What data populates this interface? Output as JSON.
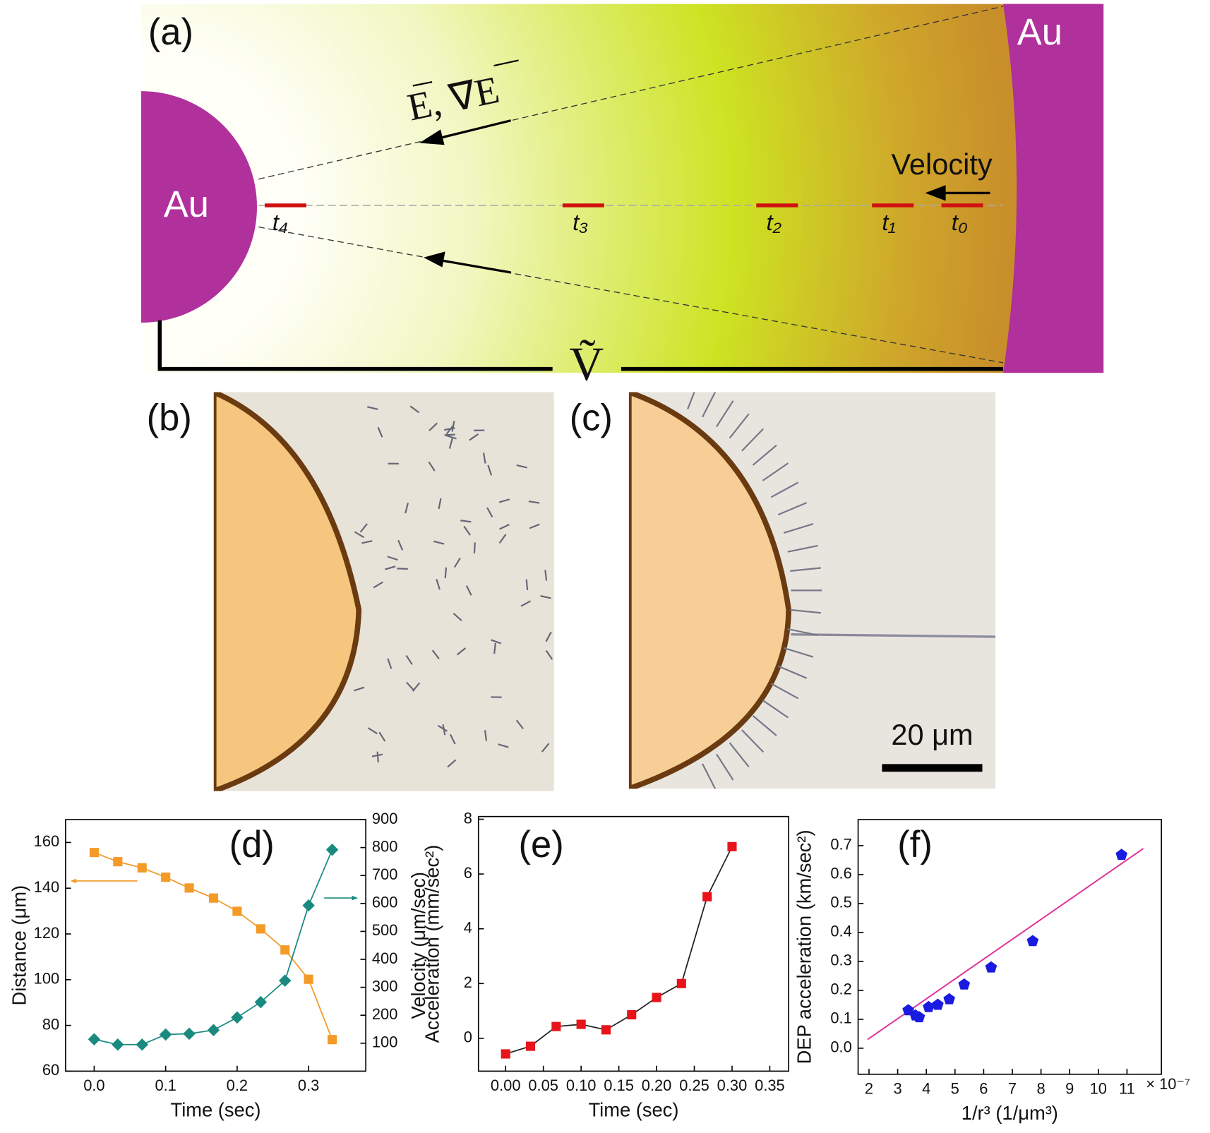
{
  "figure": {
    "panel_a": {
      "label": "(a)",
      "au_left": "Au",
      "au_right": "Au",
      "field": "E, ∇E",
      "velocity": "Velocity",
      "times": [
        "t₄",
        "t₃",
        "t₂",
        "t₁",
        "t₀"
      ],
      "source": "Ṽ"
    },
    "panel_b": {
      "label": "(b)"
    },
    "panel_c": {
      "label": "(c)",
      "scale_bar": "20 μm"
    }
  },
  "chart_data": [
    {
      "type": "line",
      "annotation": "(d)",
      "x_label": "Time (sec)",
      "y_label": "Distance (μm)",
      "y2_label": "Velocity (μm/sec)",
      "xlim": [
        -0.04,
        0.38
      ],
      "xticks": [
        {
          "value": 0,
          "label": "0.0"
        },
        0.1,
        0.2,
        0.3
      ],
      "ylim": [
        60,
        170
      ],
      "yticks": [
        60,
        80,
        100,
        120,
        140,
        160
      ],
      "y2lim": [
        0,
        900
      ],
      "y2ticks": [
        100,
        200,
        300,
        400,
        500,
        600,
        700,
        800,
        900
      ],
      "x": [
        0,
        0.033,
        0.067,
        0.1,
        0.133,
        0.167,
        0.2,
        0.233,
        0.267,
        0.3,
        0.333
      ],
      "series": [
        {
          "color": "#f39a27",
          "marker": "square",
          "values": [
            155.6,
            151.6,
            148.9,
            144.8,
            140.1,
            135.7,
            129.9,
            122.2,
            113.0,
            100.2,
            73.8
          ]
        },
        {
          "color": "#1a8a80",
          "marker": "diamond",
          "axis": "y2",
          "values": [
            114,
            95,
            95,
            131,
            134,
            147,
            192,
            247,
            324,
            593,
            792
          ]
        }
      ]
    },
    {
      "type": "line",
      "annotation": "(e)",
      "x_label": "Time (sec)",
      "y_label": "Acceleration (mm/sec²)",
      "xlim": [
        -0.036,
        0.375
      ],
      "xticks": [
        {
          "value": 0,
          "label": "0.00"
        },
        0.05,
        {
          "value": 0.1,
          "label": "0.10"
        },
        0.15,
        {
          "value": 0.2,
          "label": "0.20"
        },
        0.25,
        {
          "value": 0.3,
          "label": "0.30"
        },
        0.35
      ],
      "ylim": [
        -1.2,
        8.1
      ],
      "yticks": [
        0,
        2,
        4,
        6,
        8
      ],
      "x": [
        0,
        0.033,
        0.067,
        0.1,
        0.133,
        0.167,
        0.2,
        0.233,
        0.267,
        0.3
      ],
      "series": [
        {
          "color": "#e8141a",
          "marker": "square",
          "values": [
            -0.57,
            -0.29,
            0.43,
            0.51,
            0.31,
            0.86,
            1.49,
            2.0,
            5.17,
            7.0
          ]
        }
      ]
    },
    {
      "type": "scatter",
      "annotation": "(f)",
      "x_label": "1/r³ (1/μm³)",
      "x_exponent": "× 10⁻⁷",
      "y_label": "DEP acceleration (km/sec²)",
      "xlim": [
        1.62,
        12.2
      ],
      "xticks": [
        2,
        3,
        4,
        5,
        6,
        7,
        8,
        9,
        10,
        11
      ],
      "ylim": [
        -0.09,
        0.79
      ],
      "yticks": [
        {
          "value": 0,
          "label": "0.0"
        },
        0.1,
        0.2,
        0.3,
        0.4,
        0.5,
        0.6,
        0.7
      ],
      "x": [
        3.37,
        3.62,
        3.75,
        4.08,
        4.4,
        4.8,
        5.32,
        6.26,
        7.71,
        10.81
      ],
      "series": [
        {
          "color": "#1a1ae0",
          "marker": "pentagon",
          "values": [
            0.131,
            0.113,
            0.107,
            0.142,
            0.15,
            0.169,
            0.22,
            0.279,
            0.37,
            0.668
          ]
        }
      ],
      "fit": {
        "color": "#e0309a",
        "x": [
          1.95,
          11.57
        ],
        "values": [
          0.03,
          0.69
        ]
      }
    }
  ]
}
